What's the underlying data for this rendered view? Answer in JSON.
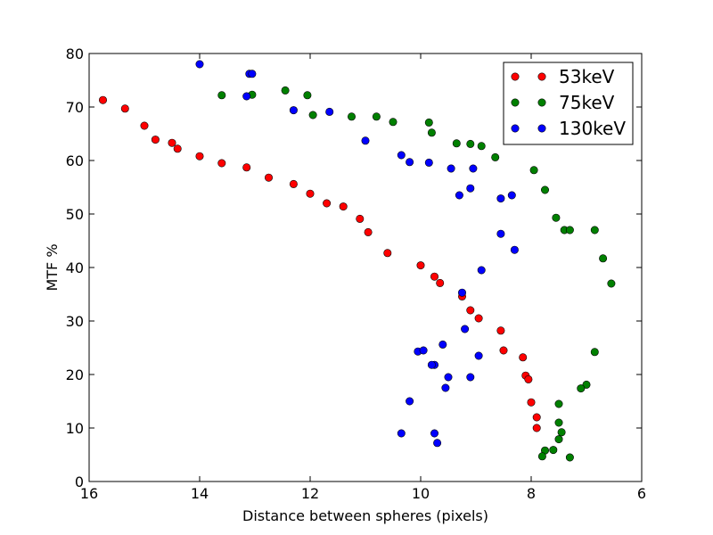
{
  "chart_data": {
    "type": "scatter",
    "title": "",
    "xlabel": "Distance between spheres (pixels)",
    "ylabel": "MTF %",
    "xlim": [
      16,
      6
    ],
    "ylim": [
      0,
      80
    ],
    "x_ticks": [
      "16",
      "14",
      "12",
      "10",
      "8",
      "6"
    ],
    "y_ticks": [
      "0",
      "10",
      "20",
      "30",
      "40",
      "50",
      "60",
      "70",
      "80"
    ],
    "grid": false,
    "legend_position": "top-right",
    "series": [
      {
        "name": "53keV",
        "color": "#ff0000",
        "points": [
          [
            15.75,
            71.3
          ],
          [
            15.35,
            69.7
          ],
          [
            15.0,
            66.5
          ],
          [
            14.8,
            63.9
          ],
          [
            14.5,
            63.3
          ],
          [
            14.4,
            62.2
          ],
          [
            14.0,
            60.8
          ],
          [
            13.6,
            59.5
          ],
          [
            13.15,
            58.7
          ],
          [
            12.75,
            56.8
          ],
          [
            12.3,
            55.6
          ],
          [
            12.0,
            53.8
          ],
          [
            11.7,
            52.0
          ],
          [
            11.4,
            51.4
          ],
          [
            11.1,
            49.1
          ],
          [
            10.95,
            46.6
          ],
          [
            10.6,
            42.7
          ],
          [
            10.0,
            40.4
          ],
          [
            9.75,
            38.3
          ],
          [
            9.65,
            37.1
          ],
          [
            9.25,
            34.6
          ],
          [
            9.1,
            32.0
          ],
          [
            8.95,
            30.5
          ],
          [
            8.55,
            28.2
          ],
          [
            8.5,
            24.5
          ],
          [
            8.15,
            23.2
          ],
          [
            8.1,
            19.8
          ],
          [
            8.05,
            19.1
          ],
          [
            8.0,
            14.8
          ],
          [
            7.9,
            12.0
          ],
          [
            7.9,
            10.0
          ]
        ]
      },
      {
        "name": "75keV",
        "color": "#008000",
        "points": [
          [
            13.6,
            72.2
          ],
          [
            13.05,
            72.3
          ],
          [
            12.45,
            73.1
          ],
          [
            12.05,
            72.2
          ],
          [
            11.95,
            68.5
          ],
          [
            11.25,
            68.2
          ],
          [
            10.8,
            68.2
          ],
          [
            10.5,
            67.2
          ],
          [
            9.85,
            67.1
          ],
          [
            9.8,
            65.2
          ],
          [
            9.35,
            63.2
          ],
          [
            9.1,
            63.1
          ],
          [
            8.9,
            62.7
          ],
          [
            8.65,
            60.6
          ],
          [
            7.95,
            58.2
          ],
          [
            7.75,
            54.5
          ],
          [
            7.55,
            49.3
          ],
          [
            7.4,
            47.0
          ],
          [
            7.3,
            47.0
          ],
          [
            6.85,
            47.0
          ],
          [
            6.7,
            41.7
          ],
          [
            6.55,
            37.0
          ],
          [
            6.85,
            24.2
          ],
          [
            7.0,
            18.1
          ],
          [
            7.1,
            17.4
          ],
          [
            7.5,
            14.5
          ],
          [
            7.5,
            11.0
          ],
          [
            7.45,
            9.2
          ],
          [
            7.5,
            7.9
          ],
          [
            7.75,
            5.8
          ],
          [
            7.6,
            5.9
          ],
          [
            7.8,
            4.7
          ],
          [
            7.3,
            4.5
          ]
        ]
      },
      {
        "name": "130keV",
        "color": "#0000ff",
        "points": [
          [
            14.0,
            78.0
          ],
          [
            13.1,
            76.2
          ],
          [
            13.05,
            76.2
          ],
          [
            13.15,
            72.0
          ],
          [
            12.3,
            69.4
          ],
          [
            11.65,
            69.1
          ],
          [
            11.0,
            63.7
          ],
          [
            10.35,
            61.0
          ],
          [
            10.2,
            59.7
          ],
          [
            9.85,
            59.6
          ],
          [
            9.45,
            58.5
          ],
          [
            9.05,
            58.5
          ],
          [
            9.3,
            53.5
          ],
          [
            9.1,
            54.8
          ],
          [
            8.35,
            53.5
          ],
          [
            8.55,
            52.9
          ],
          [
            8.55,
            46.3
          ],
          [
            8.3,
            43.3
          ],
          [
            8.9,
            39.5
          ],
          [
            9.25,
            35.3
          ],
          [
            9.2,
            28.5
          ],
          [
            9.6,
            25.6
          ],
          [
            10.05,
            24.3
          ],
          [
            9.95,
            24.5
          ],
          [
            8.95,
            23.5
          ],
          [
            9.75,
            21.8
          ],
          [
            9.8,
            21.8
          ],
          [
            9.5,
            19.5
          ],
          [
            9.1,
            19.5
          ],
          [
            9.55,
            17.5
          ],
          [
            10.2,
            15.0
          ],
          [
            10.35,
            9.0
          ],
          [
            9.75,
            9.0
          ],
          [
            9.7,
            7.2
          ]
        ]
      }
    ]
  }
}
